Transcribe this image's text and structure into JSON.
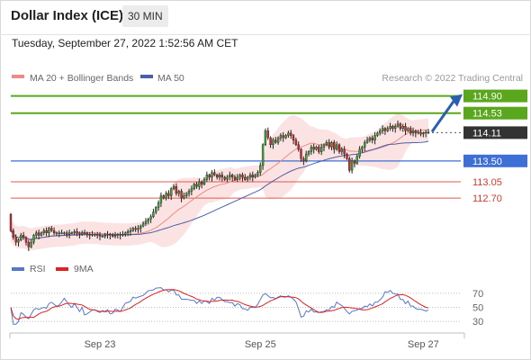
{
  "header": {
    "title": "Dollar Index (ICE)",
    "timeframe": "30 MIN",
    "datetime": "Tuesday, September 27, 2022 1:52:56 AM CET"
  },
  "colors": {
    "candle_up": "#3aa53a",
    "candle_down": "#d9262c",
    "ma20": "#f08a84",
    "bollinger_fill": "#fbdede",
    "ma50": "#4a5fa8",
    "resistance": "#5aa71d",
    "pivot": "#3d6fd6",
    "support": "#e05a52",
    "last_price": "#333333",
    "rsi": "#5577cc",
    "rsi_ma": "#dd2222",
    "arrow": "#2a5fb0"
  },
  "chart_data": {
    "type": "candlestick",
    "legend": {
      "ma20_label": "MA 20 + Bollinger Bands",
      "ma50_label": "MA 50"
    },
    "credit": "Research © 2022 Trading Central",
    "ylim": [
      111.5,
      115.3
    ],
    "x_ticks": [
      {
        "label": "Sep 23",
        "index": 35
      },
      {
        "label": "Sep 25",
        "index": 98
      },
      {
        "label": "Sep 27",
        "index": 162
      }
    ],
    "levels": [
      {
        "label": "114.90",
        "value": 114.9,
        "kind": "resistance",
        "style": "box"
      },
      {
        "label": "114.53",
        "value": 114.53,
        "kind": "resistance",
        "style": "box"
      },
      {
        "label": "114.11",
        "value": 114.11,
        "kind": "last",
        "style": "box"
      },
      {
        "label": "113.50",
        "value": 113.5,
        "kind": "pivot",
        "style": "box"
      },
      {
        "label": "113.05",
        "value": 113.05,
        "kind": "support",
        "style": "text"
      },
      {
        "label": "112.70",
        "value": 112.7,
        "kind": "support",
        "style": "text"
      }
    ],
    "candles_close": [
      112.0,
      111.85,
      111.75,
      111.8,
      111.9,
      111.85,
      111.75,
      111.65,
      111.75,
      111.9,
      111.95,
      111.9,
      111.95,
      112.0,
      111.95,
      112.05,
      112.0,
      111.95,
      111.95,
      111.95,
      111.95,
      111.95,
      111.92,
      111.95,
      111.95,
      111.98,
      111.95,
      111.92,
      111.95,
      111.95,
      111.92,
      111.9,
      111.92,
      111.92,
      111.9,
      111.88,
      111.88,
      111.9,
      111.92,
      111.9,
      111.88,
      111.9,
      111.92,
      111.9,
      111.92,
      111.95,
      111.98,
      112.0,
      112.05,
      112.02,
      112.05,
      112.1,
      112.15,
      112.2,
      112.25,
      112.3,
      112.4,
      112.5,
      112.6,
      112.75,
      112.7,
      112.8,
      112.75,
      112.9,
      112.95,
      112.8,
      112.85,
      112.7,
      112.75,
      112.8,
      112.85,
      112.9,
      113.0,
      112.95,
      113.05,
      113.0,
      113.1,
      113.2,
      113.15,
      113.25,
      113.2,
      113.15,
      113.2,
      113.15,
      113.1,
      113.15,
      113.2,
      113.15,
      113.1,
      113.15,
      113.2,
      113.15,
      113.1,
      113.15,
      113.2,
      113.15,
      113.2,
      113.25,
      113.4,
      113.85,
      114.15,
      114.0,
      113.85,
      113.95,
      113.9,
      114.0,
      114.05,
      114.0,
      114.05,
      114.1,
      114.05,
      113.95,
      113.85,
      113.75,
      113.55,
      113.5,
      113.65,
      113.7,
      113.8,
      113.75,
      113.8,
      113.7,
      113.8,
      113.85,
      113.9,
      113.8,
      113.9,
      113.75,
      113.85,
      113.7,
      113.75,
      113.65,
      113.55,
      113.3,
      113.5,
      113.45,
      113.6,
      113.75,
      113.8,
      113.9,
      113.95,
      114.0,
      113.95,
      114.05,
      114.1,
      114.15,
      114.2,
      114.15,
      114.2,
      114.25,
      114.2,
      114.25,
      114.3,
      114.2,
      114.25,
      114.15,
      114.2,
      114.1,
      114.15,
      114.1,
      114.12,
      114.08,
      114.1,
      114.12,
      114.11
    ],
    "rsi_chart": {
      "legend": {
        "rsi_label": "RSI",
        "ma_label": "9MA"
      },
      "ylim": [
        20,
        80
      ],
      "ticks": [
        "70",
        "50",
        "30"
      ],
      "tick_values": [
        70,
        50,
        30
      ]
    },
    "forecast": {
      "from_value": 114.11,
      "to_value": 114.9
    }
  }
}
